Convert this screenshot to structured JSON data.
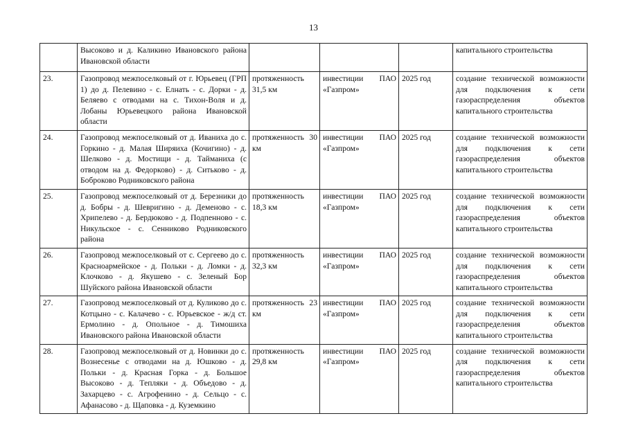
{
  "page_number": "13",
  "rows": [
    {
      "num": "",
      "name": "Высоково и д. Каликино Ивановского района Ивановской области",
      "length": "",
      "source": "",
      "year": "",
      "purpose": "капитального строительства"
    },
    {
      "num": "23.",
      "name": "Газопровод межпоселковый от г. Юрьевец (ГРП 1) до д. Пелевино - с. Елнать - с. Дорки - д. Беляево с отводами на с. Тихон-Воля и д. Лобаны Юрьевецкого района Ивановской области",
      "length": "протяженность 31,5 км",
      "source": "инвестиции ПАО «Газпром»",
      "year": "2025 год",
      "purpose": "создание технической возможности для подключения к сети газораспределения объектов капитального строительства"
    },
    {
      "num": "24.",
      "name": "Газопровод межпоселковый от д. Иваниха до с. Горкино - д. Малая Ширяиха (Кочигино) - д. Шелково - д. Мостищи - д. Тайманиха (с отводом на д. Федорково) - д. Ситьково - д. Боброково Родниковского района",
      "length": "протяженность 30 км",
      "source": "инвестиции ПАО «Газпром»",
      "year": "2025 год",
      "purpose": "создание технической возможности для подключения к сети газораспределения объектов капитального строительства"
    },
    {
      "num": "25.",
      "name": "Газопровод межпоселковый от д. Березники до д. Бобры - д. Шевригино - д. Деменово - с. Хрипелево - д. Бердюково - д. Подпенново - с. Никульское - с. Сенниково Родниковского района",
      "length": "протяженность 18,3 км",
      "source": "инвестиции ПАО «Газпром»",
      "year": "2025 год",
      "purpose": "создание технической возможности для подключения к сети газораспределения объектов капитального строительства"
    },
    {
      "num": "26.",
      "name": "Газопровод межпоселковый от с. Сергеево до с. Красноармейское - д. Польки - д. Ломки - д. Клочково - д. Якушево - с. Зеленый Бор Шуйского района Ивановской области",
      "length": "протяженность 32,3 км",
      "source": "инвестиции ПАО «Газпром»",
      "year": "2025 год",
      "purpose": "создание технической возможности для подключения к сети газораспределения объектов капитального строительства"
    },
    {
      "num": "27.",
      "name": "Газопровод межпоселковый от д. Куликово до с. Котцыно - с. Калачево - с. Юрьевское - ж/д ст. Ермолино - д. Опольное - д. Тимошиха Ивановского района Ивановской области",
      "length": "протяженность 23 км",
      "source": "инвестиции ПАО «Газпром»",
      "year": "2025 год",
      "purpose": "создание технической возможности для подключения к сети газораспределения объектов капитального строительства"
    },
    {
      "num": "28.",
      "name": "Газопровод межпоселковый от д. Новинки до с. Вознесенье с отводами на д. Юшково - д. Польки - д. Красная Горка - д. Большое Высоково - д. Тепляки - д. Объедово - д. Захарцево - с. Агрофенино - д. Сельцо - с. Афанасово - д. Щаповка - д. Куземкино",
      "length": "протяженность 29,8 км",
      "source": "инвестиции ПАО «Газпром»",
      "year": "2025 год",
      "purpose": "создание технической возможности для подключения к сети газораспределения объектов капитального строительства"
    }
  ]
}
